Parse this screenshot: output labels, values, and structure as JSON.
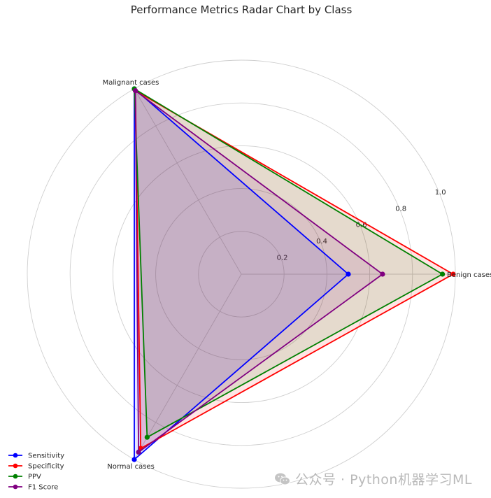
{
  "chart_data": {
    "type": "radar",
    "title": "Performance Metrics Radar Chart by Class",
    "categories": [
      "Benign cases",
      "Malignant cases",
      "Normal cases"
    ],
    "rlim": [
      0,
      1.0
    ],
    "rticks": [
      "0.2",
      "0.4",
      "0.6",
      "0.8",
      "1.0"
    ],
    "rtick_values": [
      0.2,
      0.4,
      0.6,
      0.8,
      1.0
    ],
    "grid": true,
    "legend_position": "bottom-left",
    "series": [
      {
        "name": "Sensitivity",
        "color": "#0000ff",
        "values": [
          0.5,
          1.0,
          1.0
        ]
      },
      {
        "name": "Specificity",
        "color": "#ff0000",
        "values": [
          0.99,
          0.99,
          0.94
        ]
      },
      {
        "name": "PPV",
        "color": "#008000",
        "values": [
          0.94,
          1.0,
          0.88
        ]
      },
      {
        "name": "F1 Score",
        "color": "#800080",
        "values": [
          0.66,
          0.99,
          0.96
        ]
      }
    ]
  },
  "watermark": {
    "text": "公众号 · Python机器学习ML",
    "icon": "wechat-icon"
  }
}
